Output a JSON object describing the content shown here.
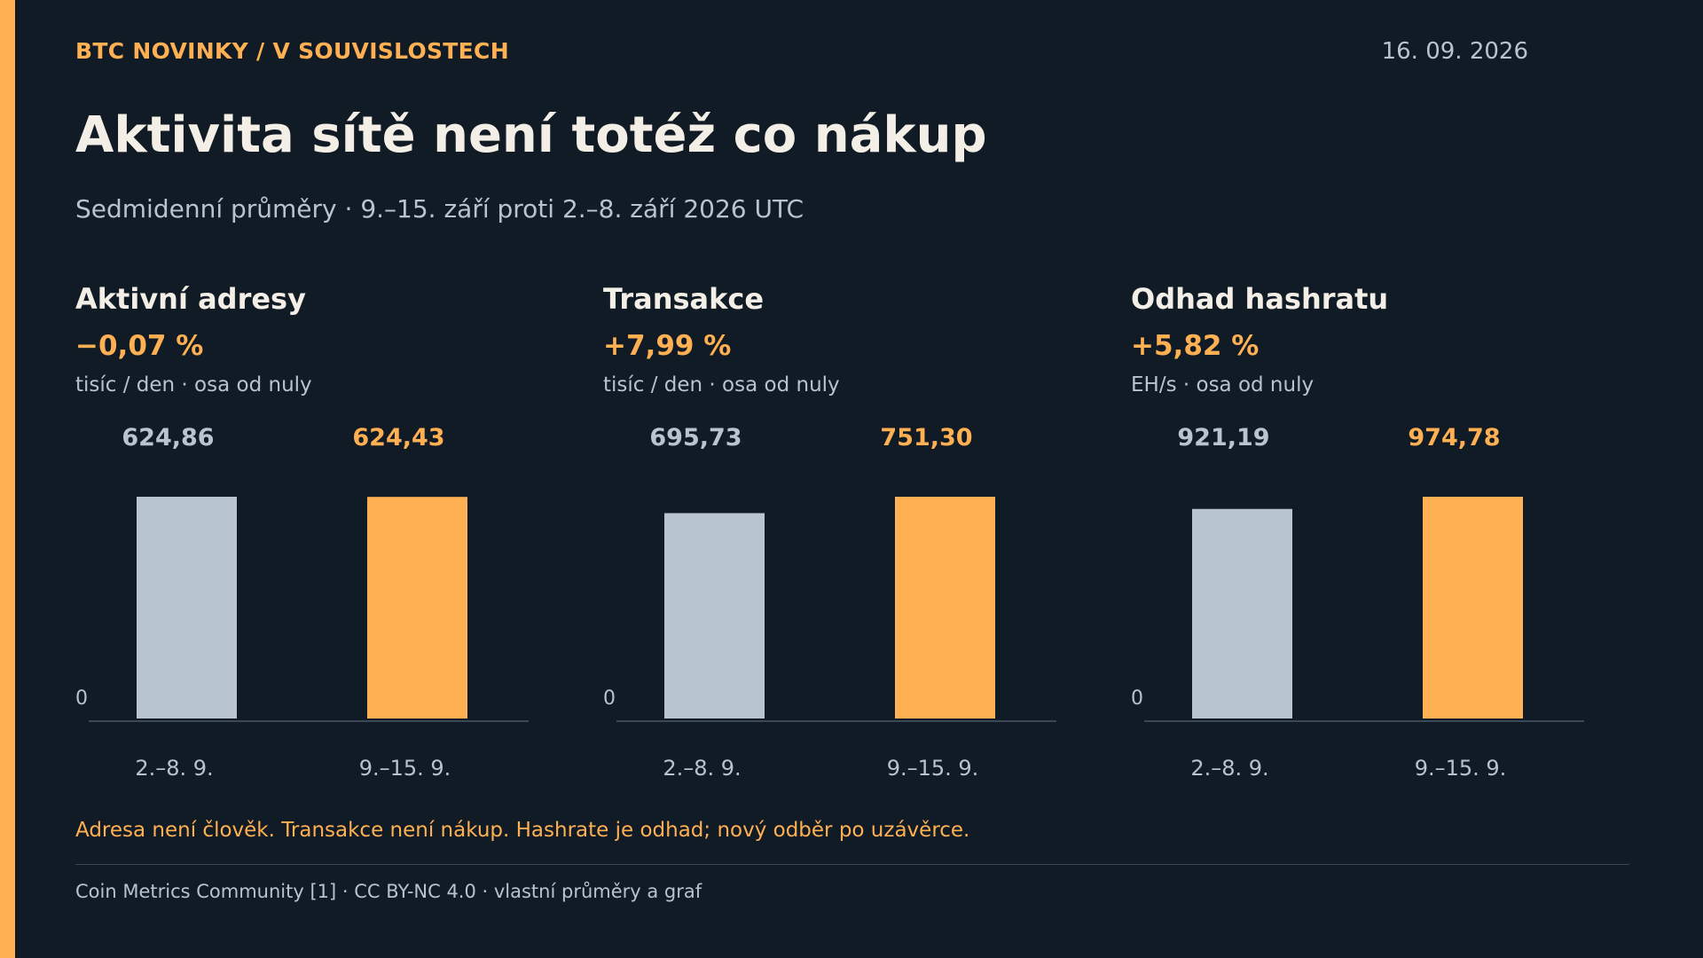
{
  "header": {
    "kicker": "BTC NOVINKY / V SOUVISLOSTECH",
    "date": "16. 09. 2026",
    "title": "Aktivita sítě není totéž co nákup",
    "subtitle": "Sedmidenní průměry · 9.–15. září proti 2.–8. září 2026 UTC"
  },
  "panels": [
    {
      "title": "Aktivní adresy",
      "change": "−0,07 %",
      "unit": "tisíc / den · osa od nuly"
    },
    {
      "title": "Transakce",
      "change": "+7,99 %",
      "unit": "tisíc / den · osa od nuly"
    },
    {
      "title": "Odhad hashratu",
      "change": "+5,82 %",
      "unit": "EH/s · osa od nuly"
    }
  ],
  "chart_data": [
    {
      "type": "bar",
      "title": "Aktivní adresy",
      "categories": [
        "2.–8. 9.",
        "9.–15. 9."
      ],
      "values": [
        624.86,
        624.43
      ],
      "value_labels": [
        "624,86",
        "624,43"
      ],
      "zero_label": "0",
      "colors": [
        "#b8c4cf",
        "#ffb052"
      ]
    },
    {
      "type": "bar",
      "title": "Transakce",
      "categories": [
        "2.–8. 9.",
        "9.–15. 9."
      ],
      "values": [
        695.73,
        751.3
      ],
      "value_labels": [
        "695,73",
        "751,30"
      ],
      "zero_label": "0",
      "colors": [
        "#b8c4cf",
        "#ffb052"
      ]
    },
    {
      "type": "bar",
      "title": "Odhad hashratu",
      "categories": [
        "2.–8. 9.",
        "9.–15. 9."
      ],
      "values": [
        921.19,
        974.78
      ],
      "value_labels": [
        "921,19",
        "974,78"
      ],
      "zero_label": "0",
      "colors": [
        "#b8c4cf",
        "#ffb052"
      ]
    }
  ],
  "footer": {
    "note": "Adresa není člověk. Transakce není nákup. Hashrate je odhad; nový odběr po uzávěrce.",
    "source": "Coin Metrics Community [1] · CC BY-NC 4.0 · vlastní průměry a graf"
  }
}
